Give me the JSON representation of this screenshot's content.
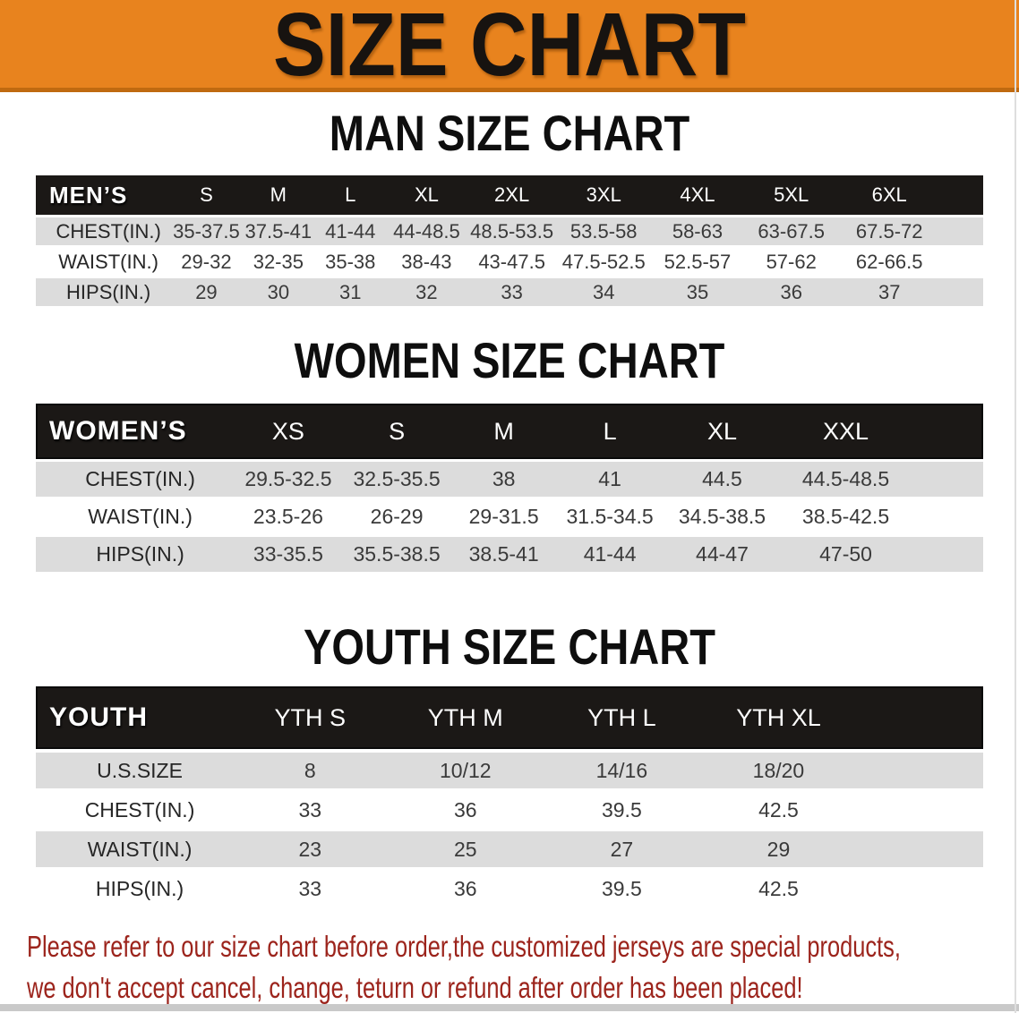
{
  "banner": {
    "title": "SIZE CHART",
    "bg_color": "#e8831e",
    "edge_color": "#c06a10",
    "text_color": "#1a1a1a"
  },
  "sections": [
    {
      "key": "men",
      "heading": "MAN SIZE CHART",
      "header_label": "MEN’S",
      "columns": [
        "S",
        "M",
        "L",
        "XL",
        "2XL",
        "3XL",
        "4XL",
        "5XL",
        "6XL"
      ],
      "rows": [
        {
          "label": "CHEST(IN.)",
          "values": [
            "35-37.5",
            "37.5-41",
            "41-44",
            "44-48.5",
            "48.5-53.5",
            "53.5-58",
            "58-63",
            "63-67.5",
            "67.5-72"
          ]
        },
        {
          "label": "WAIST(IN.)",
          "values": [
            "29-32",
            "32-35",
            "35-38",
            "38-43",
            "43-47.5",
            "47.5-52.5",
            "52.5-57",
            "57-62",
            "62-66.5"
          ]
        },
        {
          "label": "HIPS(IN.)",
          "values": [
            "29",
            "30",
            "31",
            "32",
            "33",
            "34",
            "35",
            "36",
            "37"
          ]
        }
      ]
    },
    {
      "key": "women",
      "heading": "WOMEN SIZE CHART",
      "header_label": "WOMEN’S",
      "columns": [
        "XS",
        "S",
        "M",
        "L",
        "XL",
        "XXL"
      ],
      "rows": [
        {
          "label": "CHEST(IN.)",
          "values": [
            "29.5-32.5",
            "32.5-35.5",
            "38",
            "41",
            "44.5",
            "44.5-48.5"
          ]
        },
        {
          "label": "WAIST(IN.)",
          "values": [
            "23.5-26",
            "26-29",
            "29-31.5",
            "31.5-34.5",
            "34.5-38.5",
            "38.5-42.5"
          ]
        },
        {
          "label": "HIPS(IN.)",
          "values": [
            "33-35.5",
            "35.5-38.5",
            "38.5-41",
            "41-44",
            "44-47",
            "47-50"
          ]
        }
      ]
    },
    {
      "key": "youth",
      "heading": "YOUTH SIZE CHART",
      "header_label": "YOUTH",
      "columns": [
        "YTH S",
        "YTH M",
        "YTH L",
        "YTH XL"
      ],
      "rows": [
        {
          "label": "U.S.SIZE",
          "values": [
            "8",
            "10/12",
            "14/16",
            "18/20"
          ]
        },
        {
          "label": "CHEST(IN.)",
          "values": [
            "33",
            "36",
            "39.5",
            "42.5"
          ]
        },
        {
          "label": "WAIST(IN.)",
          "values": [
            "23",
            "25",
            "27",
            "29"
          ]
        },
        {
          "label": "HIPS(IN.)",
          "values": [
            "33",
            "36",
            "39.5",
            "42.5"
          ]
        }
      ]
    }
  ],
  "disclaimer": {
    "line1": "Please refer to our size chart before order,the customized jerseys are special products,",
    "line2": "we don't accept cancel, change, teturn or refund after order has been placed!",
    "color": "#9c241c"
  }
}
